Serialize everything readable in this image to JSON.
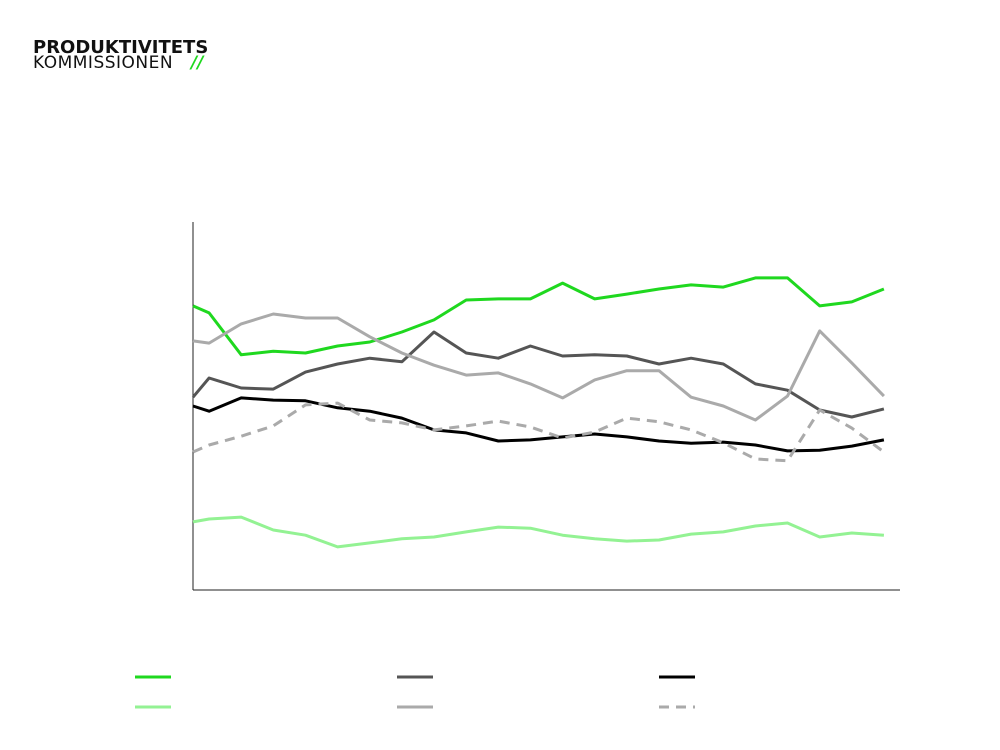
{
  "logo": {
    "line1": "PRODUKTIVITETS",
    "line2": "KOMMISSIONEN",
    "mark": "//"
  },
  "chart_data": {
    "type": "line",
    "x": [
      0,
      0.5,
      1.5,
      2.5,
      3.5,
      4.5,
      5.5,
      6.5,
      7.5,
      8.5,
      9.5,
      10.5,
      11.5,
      12.5,
      13.5,
      14.5,
      15.5,
      16.5,
      17.5,
      18.5,
      19.5,
      20.5,
      21.5
    ],
    "xlim": [
      0,
      22
    ],
    "ylim": [
      0,
      100
    ],
    "series": [
      {
        "color": "#1fd81f",
        "dash": false,
        "values": [
          77.2,
          75.3,
          63.9,
          64.9,
          64.4,
          66.3,
          67.4,
          70.1,
          73.4,
          78.8,
          79.1,
          79.1,
          83.4,
          79.1,
          80.4,
          81.8,
          82.9,
          82.3,
          84.8,
          84.8,
          77.2,
          78.3,
          81.8
        ]
      },
      {
        "color": "#555555",
        "dash": false,
        "values": [
          52.4,
          57.6,
          54.9,
          54.6,
          59.2,
          61.4,
          63.0,
          62.0,
          70.1,
          64.4,
          63.0,
          66.3,
          63.6,
          63.9,
          63.6,
          61.4,
          63.0,
          61.4,
          56.0,
          54.3,
          48.9,
          47.0,
          49.2
        ]
      },
      {
        "color": "#000000",
        "dash": false,
        "values": [
          50.0,
          48.6,
          52.2,
          51.6,
          51.4,
          49.5,
          48.6,
          46.7,
          43.5,
          42.7,
          40.5,
          40.8,
          41.6,
          42.4,
          41.6,
          40.5,
          39.9,
          40.2,
          39.4,
          37.8,
          38.0,
          39.1,
          40.8
        ]
      },
      {
        "color": "#93f293",
        "dash": false,
        "values": [
          18.5,
          19.3,
          19.8,
          16.3,
          14.9,
          11.7,
          12.8,
          13.9,
          14.4,
          15.8,
          17.1,
          16.8,
          14.9,
          13.9,
          13.3,
          13.6,
          15.2,
          15.8,
          17.4,
          18.2,
          14.4,
          15.5,
          14.9
        ]
      },
      {
        "color": "#aaaaaa",
        "dash": false,
        "values": [
          67.7,
          67.1,
          72.3,
          75.0,
          73.9,
          73.9,
          68.8,
          64.4,
          61.1,
          58.4,
          59.0,
          56.0,
          52.2,
          57.1,
          59.6,
          59.6,
          52.4,
          50.0,
          46.2,
          52.7,
          70.4,
          61.7,
          52.7
        ]
      },
      {
        "color": "#aaaaaa",
        "dash": true,
        "values": [
          37.5,
          39.4,
          41.8,
          44.6,
          50.3,
          50.8,
          46.2,
          45.4,
          43.5,
          44.6,
          45.9,
          44.3,
          41.3,
          42.9,
          46.7,
          45.7,
          43.5,
          40.0,
          35.6,
          35.1,
          48.9,
          44.0,
          37.5
        ]
      }
    ]
  }
}
